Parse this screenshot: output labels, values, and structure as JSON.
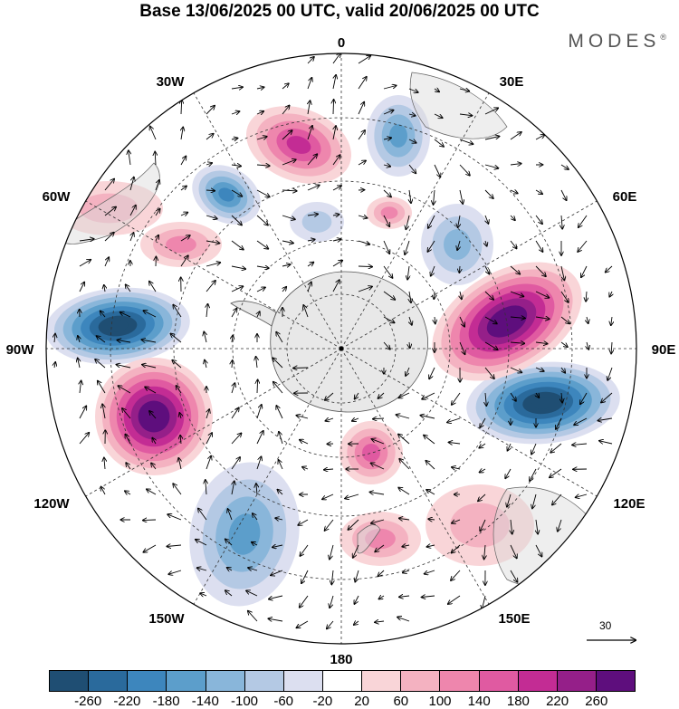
{
  "title": "Base 13/06/2025 00 UTC, valid 20/06/2025 00 UTC",
  "brand": {
    "name": "MODES",
    "mark": "®"
  },
  "map_labels": {
    "top": "0",
    "bottom": "180",
    "left": "90W",
    "right": "90E",
    "upper_left_1": "30W",
    "upper_left_2": "60W",
    "upper_right_1": "30E",
    "upper_right_2": "60E",
    "lower_left_1": "120W",
    "lower_left_2": "150W",
    "lower_right_1": "120E",
    "lower_right_2": "150E"
  },
  "vector_scale": {
    "label": "30",
    "icon": "arrow-right-icon"
  },
  "colorbar": {
    "colors": [
      "#1f4e73",
      "#2a6a9c",
      "#3d86bd",
      "#5c9ecb",
      "#89b6da",
      "#b4c9e4",
      "#dcdff0",
      "#ffffff",
      "#f9d5d8",
      "#f4b2c1",
      "#ee86ad",
      "#e05aa1",
      "#c32c94",
      "#951f89",
      "#5e0e7d"
    ],
    "ticks": [
      "-260",
      "-220",
      "-180",
      "-140",
      "-100",
      "-60",
      "-20",
      "20",
      "60",
      "100",
      "140",
      "180",
      "220",
      "260"
    ]
  }
}
